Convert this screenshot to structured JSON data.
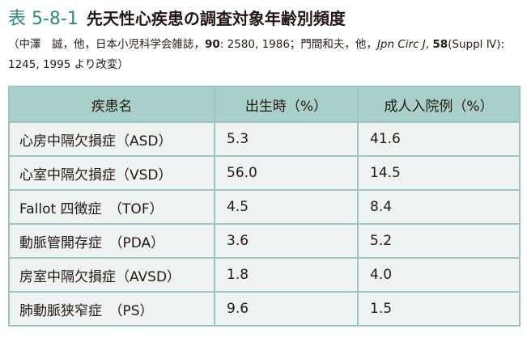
{
  "title": {
    "number": "表 5-8-1",
    "text": "先天性心疾患の調査対象年齢別頻度"
  },
  "citation": {
    "part1": "（中澤　誠，他，日本小児科学会雑誌，",
    "vol1": "90",
    "part2": ": 2580, 1986；門間和夫，他，",
    "journal": "Jpn Circ J",
    "part3": ", ",
    "vol2": "58",
    "part4": "(Suppl Ⅳ): 1245, 1995 より改変）"
  },
  "table": {
    "headers": [
      "疾患名",
      "出生時（%）",
      "成人入院例（%）"
    ],
    "rows": [
      [
        "心房中隔欠損症（ASD）",
        "5.3",
        "41.6"
      ],
      [
        "心室中隔欠損症（VSD）",
        "56.0",
        "14.5"
      ],
      [
        "Fallot 四徴症　（TOF）",
        "4.5",
        "8.4"
      ],
      [
        "動脈管開存症　（PDA）",
        "3.6",
        "5.2"
      ],
      [
        "房室中隔欠損症（AVSD）",
        "1.8",
        "4.0"
      ],
      [
        "肺動脈狭窄症　（PS）",
        "9.6",
        "1.5"
      ]
    ]
  },
  "colors": {
    "accent": "#2f8a83",
    "header_bg": "#a8cfc9",
    "cell_bg": "#eef3f1",
    "border": "#9dc4be"
  }
}
